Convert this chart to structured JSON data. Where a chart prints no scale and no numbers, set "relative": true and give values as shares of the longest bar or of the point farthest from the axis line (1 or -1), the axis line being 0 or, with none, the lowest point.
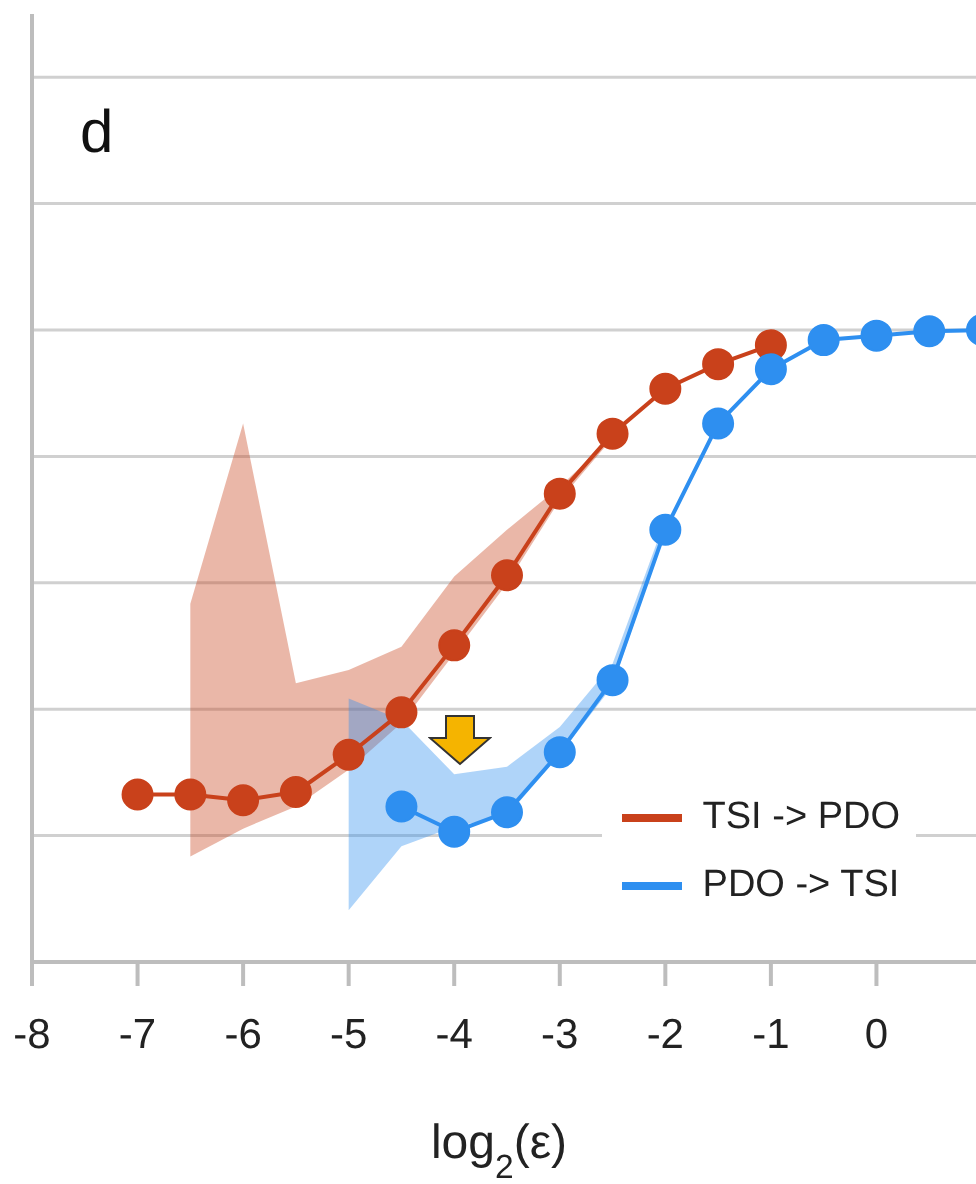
{
  "chart_data": {
    "type": "line",
    "title": "d",
    "xlabel": "log$_{2}$(ε)",
    "relative": true,
    "x": [
      -7,
      -6.5,
      -6,
      -5.5,
      -5,
      -4.5,
      -4,
      -3.5,
      -3,
      -2.5,
      -2,
      -1.5,
      -1,
      -0.5,
      0,
      0.5,
      1
    ],
    "xlim": [
      -8,
      1
    ],
    "xticks": [
      -8,
      -7,
      -6,
      -5,
      -4,
      -3,
      -2,
      -1,
      0,
      {
        "value": 1,
        "label": null
      }
    ],
    "grid": "y",
    "legend": "bottom right",
    "marker": "circle",
    "line_style": "solid",
    "series": [
      {
        "name": "TSI -> PDO",
        "color": "#c9411b",
        "values": [
          0.265,
          0.265,
          0.256,
          0.269,
          0.328,
          0.395,
          0.501,
          0.612,
          0.741,
          0.836,
          0.907,
          0.946,
          0.976,
          null,
          null,
          null,
          null
        ],
        "lower": [
          null,
          0.167,
          0.211,
          0.246,
          0.304,
          0.378,
          0.488,
          0.599,
          0.731,
          0.829,
          null,
          null,
          null,
          null,
          null,
          null,
          null
        ],
        "upper": [
          null,
          0.567,
          0.852,
          0.441,
          0.462,
          0.499,
          0.61,
          0.684,
          0.752,
          0.831,
          null,
          null,
          null,
          null,
          null,
          null,
          null
        ]
      },
      {
        "name": "PDO -> TSI",
        "color": "#2e8ff0",
        "values": [
          null,
          null,
          null,
          null,
          null,
          0.246,
          0.206,
          0.237,
          0.332,
          0.446,
          0.684,
          0.852,
          0.938,
          0.984,
          0.991,
          0.998,
          1.0
        ],
        "lower": [
          null,
          null,
          null,
          null,
          0.082,
          0.183,
          0.214,
          0.231,
          0.328,
          0.437,
          0.68,
          null,
          null,
          null,
          null,
          null,
          null
        ],
        "upper": [
          null,
          null,
          null,
          null,
          0.417,
          0.383,
          0.297,
          0.309,
          0.372,
          0.472,
          0.7,
          null,
          null,
          null,
          null,
          null,
          null
        ]
      }
    ]
  }
}
